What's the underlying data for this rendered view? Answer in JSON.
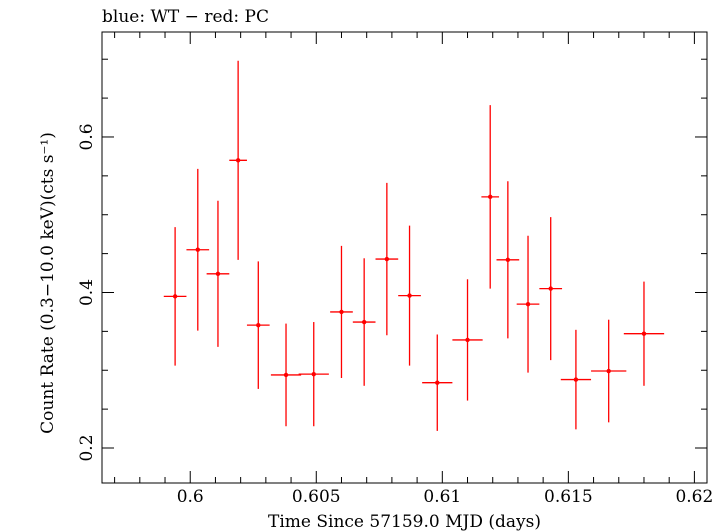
{
  "chart_data": {
    "type": "scatter",
    "title": "blue: WT − red: PC",
    "xlabel": "Time Since 57159.0 MJD (days)",
    "ylabel": "Count Rate (0.3−10.0 keV)(cts s⁻¹)",
    "xlim": [
      0.5965,
      0.6205
    ],
    "ylim": [
      0.155,
      0.735
    ],
    "xticks": [
      0.6,
      0.605,
      0.61,
      0.615,
      0.62
    ],
    "xtick_labels": [
      "0.6",
      "0.605",
      "0.61",
      "0.615",
      "0.62"
    ],
    "yticks": [
      0.2,
      0.4,
      0.6
    ],
    "ytick_labels": [
      "0.2",
      "0.4",
      "0.6"
    ],
    "grid": false,
    "colors": {
      "PC": "#ff0000",
      "axes": "#000000"
    },
    "series": [
      {
        "name": "PC",
        "color": "#ff0000",
        "points": [
          {
            "x": 0.5994,
            "xerr": 0.00045,
            "y": 0.395,
            "yerr": 0.089
          },
          {
            "x": 0.6003,
            "xerr": 0.00045,
            "y": 0.455,
            "yerr": 0.104
          },
          {
            "x": 0.6011,
            "xerr": 0.00045,
            "y": 0.424,
            "yerr": 0.094
          },
          {
            "x": 0.6019,
            "xerr": 0.00035,
            "y": 0.57,
            "yerr": 0.128
          },
          {
            "x": 0.6027,
            "xerr": 0.00045,
            "y": 0.358,
            "yerr": 0.082
          },
          {
            "x": 0.6038,
            "xerr": 0.0006,
            "y": 0.294,
            "yerr": 0.066
          },
          {
            "x": 0.6049,
            "xerr": 0.0006,
            "y": 0.295,
            "yerr": 0.067
          },
          {
            "x": 0.606,
            "xerr": 0.00045,
            "y": 0.375,
            "yerr": 0.085
          },
          {
            "x": 0.6069,
            "xerr": 0.00045,
            "y": 0.362,
            "yerr": 0.082
          },
          {
            "x": 0.6078,
            "xerr": 0.00045,
            "y": 0.443,
            "yerr": 0.098
          },
          {
            "x": 0.6087,
            "xerr": 0.00045,
            "y": 0.396,
            "yerr": 0.09
          },
          {
            "x": 0.6098,
            "xerr": 0.0006,
            "y": 0.284,
            "yerr": 0.062
          },
          {
            "x": 0.611,
            "xerr": 0.0006,
            "y": 0.339,
            "yerr": 0.078
          },
          {
            "x": 0.6119,
            "xerr": 0.00035,
            "y": 0.523,
            "yerr": 0.118
          },
          {
            "x": 0.6126,
            "xerr": 0.00045,
            "y": 0.442,
            "yerr": 0.101
          },
          {
            "x": 0.6134,
            "xerr": 0.00045,
            "y": 0.385,
            "yerr": 0.088
          },
          {
            "x": 0.6143,
            "xerr": 0.00045,
            "y": 0.405,
            "yerr": 0.092
          },
          {
            "x": 0.6153,
            "xerr": 0.0006,
            "y": 0.288,
            "yerr": 0.064
          },
          {
            "x": 0.6166,
            "xerr": 0.0007,
            "y": 0.299,
            "yerr": 0.066
          },
          {
            "x": 0.618,
            "xerr": 0.0008,
            "y": 0.347,
            "yerr": 0.067
          }
        ]
      }
    ]
  }
}
